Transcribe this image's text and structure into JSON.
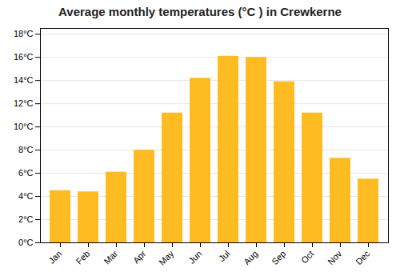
{
  "chart_data": {
    "type": "bar",
    "title": "Average monthly temperatures (°C ) in Crewkerne",
    "categories": [
      "Jan",
      "Feb",
      "Mar",
      "Apr",
      "May",
      "Jun",
      "Jul",
      "Aug",
      "Sep",
      "Oct",
      "Nov",
      "Dec"
    ],
    "values": [
      4.5,
      4.4,
      6.1,
      8.0,
      11.2,
      14.2,
      16.1,
      16.0,
      13.9,
      11.2,
      7.3,
      5.5
    ],
    "color": "#FFBB22",
    "ylim": [
      0,
      18.5
    ],
    "yticks": [
      {
        "value": 0,
        "label": "0°C"
      },
      {
        "value": 2,
        "label": "2°C"
      },
      {
        "value": 4,
        "label": "4°C"
      },
      {
        "value": 6,
        "label": "6°C"
      },
      {
        "value": 8,
        "label": "8°C"
      },
      {
        "value": 10,
        "label": "10°C"
      },
      {
        "value": 12,
        "label": "12°C"
      },
      {
        "value": 14,
        "label": "14°C"
      },
      {
        "value": 16,
        "label": "16°C"
      },
      {
        "value": 18,
        "label": "18°C"
      }
    ],
    "grid": true
  }
}
